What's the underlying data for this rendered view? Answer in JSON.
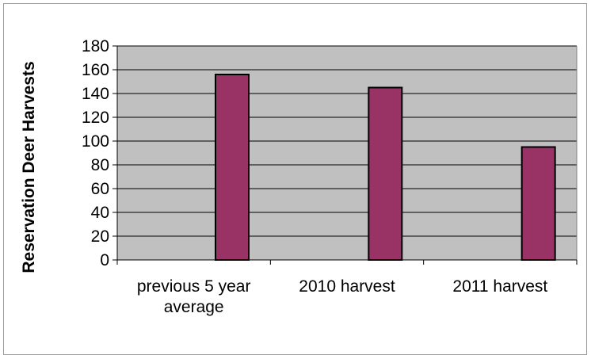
{
  "chart_data": {
    "type": "bar",
    "title": "",
    "xlabel": "",
    "ylabel": "Reservation Deer Harvests",
    "categories": [
      [
        "previous 5 year",
        "average"
      ],
      [
        "2010 harvest"
      ],
      [
        "2011 harvest"
      ]
    ],
    "values": [
      156,
      145,
      95
    ],
    "ylim": [
      0,
      180
    ],
    "yticks": [
      0,
      20,
      40,
      60,
      80,
      100,
      120,
      140,
      160,
      180
    ],
    "grid": true,
    "legend": "none",
    "colors": {
      "bar": "#993366",
      "bar_border": "#000000",
      "plot_area": "#c0c0c0",
      "gridline": "#000000"
    }
  }
}
